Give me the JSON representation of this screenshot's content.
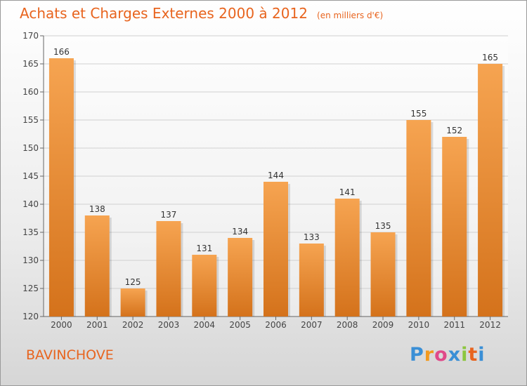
{
  "title": "Achats et Charges Externes 2000 à 2012",
  "subtitle": "(en milliers d'€)",
  "commune": "BAVINCHOVE",
  "logo_text": "Proxiti",
  "colors": {
    "accent": "#e8641e",
    "bar_light": "#f6a451",
    "bar_dark": "#d4721b",
    "grid": "#d0d0d0"
  },
  "chart_data": {
    "type": "bar",
    "title": "Achats et Charges Externes 2000 à 2012",
    "subtitle": "(en milliers d'€)",
    "categories": [
      "2000",
      "2001",
      "2002",
      "2003",
      "2004",
      "2005",
      "2006",
      "2007",
      "2008",
      "2009",
      "2010",
      "2011",
      "2012"
    ],
    "values": [
      166,
      138,
      125,
      137,
      131,
      134,
      144,
      133,
      141,
      135,
      155,
      152,
      165
    ],
    "ylim": [
      120,
      170
    ],
    "yticks": [
      120,
      125,
      130,
      135,
      140,
      145,
      150,
      155,
      160,
      165,
      170
    ],
    "grid": true,
    "xlabel": "",
    "ylabel": ""
  }
}
